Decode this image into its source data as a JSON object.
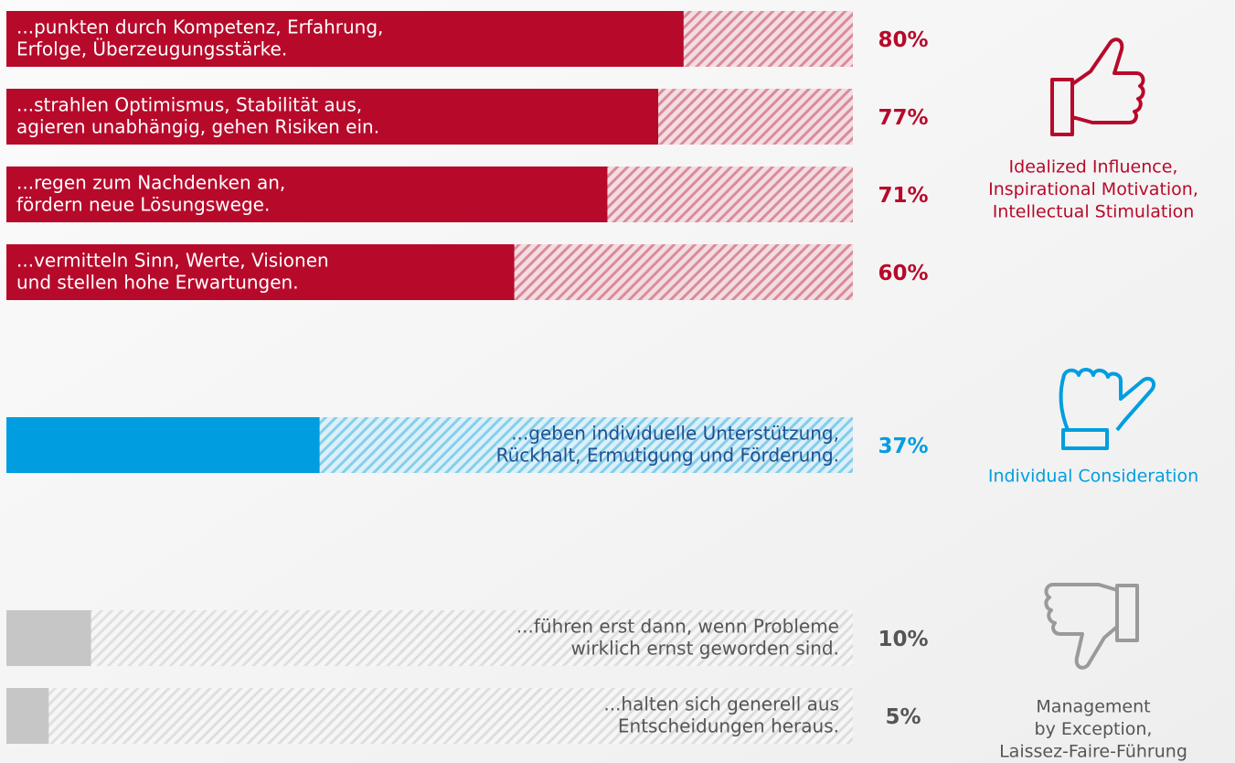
{
  "chart_data": {
    "type": "bar",
    "categories": [
      [
        "...punkten durch Kompetenz, Erfahrung,",
        "Erfolge, Überzeugungsstärke."
      ],
      [
        "...strahlen Optimismus, Stabilität aus,",
        "agieren unabhängig, gehen Risiken ein."
      ],
      [
        "...regen zum Nachdenken an,",
        "fördern neue Lösungswege."
      ],
      [
        "...vermitteln Sinn, Werte, Visionen",
        "und stellen hohe Erwartungen."
      ],
      [
        "...geben individuelle Unterstützung,",
        "Rückhalt, Ermutigung und Förderung."
      ],
      [
        "...führen erst dann, wenn Probleme",
        "wirklich ernst geworden sind."
      ],
      [
        "...halten sich generell aus",
        "Entscheidungen heraus."
      ]
    ],
    "values": [
      80,
      77,
      71,
      60,
      37,
      10,
      5
    ],
    "value_labels": [
      "80%",
      "77%",
      "71%",
      "60%",
      "37%",
      "10%",
      "5%"
    ],
    "colors": [
      "#b70a2b",
      "#b70a2b",
      "#b70a2b",
      "#b70a2b",
      "#009ee0",
      "#c6c6c6",
      "#c6c6c6"
    ],
    "xlim": [
      0,
      100
    ],
    "groups": [
      {
        "name": [
          "Idealized Influence,",
          "Inspirational Motivation,",
          "Intellectual Stimulation"
        ],
        "color": "#b70a2b"
      },
      {
        "name": [
          "Individual Consideration"
        ],
        "color": "#009ee0"
      },
      {
        "name": [
          "Management",
          "by Exception,",
          "Laissez-Faire-Führung"
        ],
        "color": "#555555"
      }
    ]
  }
}
